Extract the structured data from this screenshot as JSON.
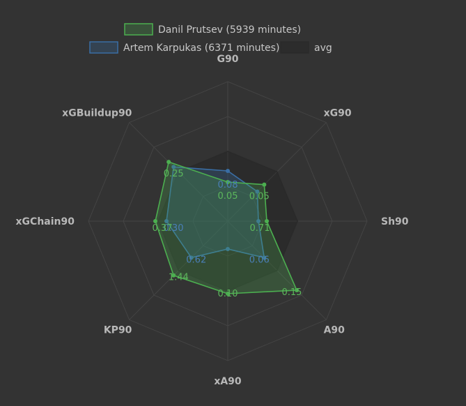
{
  "chart_data": {
    "type": "radar",
    "title": "",
    "axes": [
      "G90",
      "xG90",
      "Sh90",
      "A90",
      "xA90",
      "KP90",
      "xGChain90",
      "xGBuildup90"
    ],
    "legend_placement": "top",
    "grid": true,
    "series": [
      {
        "name": "Danil Prutsev (5939 minutes)",
        "color": "#4caf50",
        "fill": "rgba(76,175,80,0.25)",
        "normalized": [
          0.28,
          0.37,
          0.28,
          0.7,
          0.52,
          0.55,
          0.52,
          0.6
        ],
        "labels": [
          "0.05",
          "0.05",
          "0.71",
          "0.15",
          "0.10",
          "1.44",
          "0.37",
          "0.25"
        ]
      },
      {
        "name": "Artem Karpukas (6371 minutes)",
        "color": "#3a6ea5",
        "fill": "rgba(58,110,165,0.28)",
        "normalized": [
          0.36,
          0.3,
          0.22,
          0.37,
          0.2,
          0.37,
          0.44,
          0.55
        ],
        "labels": [
          "0.08",
          "",
          "",
          "0.06",
          "",
          "0.62",
          "0.30",
          ""
        ]
      },
      {
        "name": "avg",
        "color": "#2a2a2a",
        "fill": "rgba(20,20,20,0.22)",
        "normalized": [
          0.5,
          0.5,
          0.5,
          0.5,
          0.5,
          0.5,
          0.5,
          0.5
        ],
        "labels": []
      }
    ]
  }
}
